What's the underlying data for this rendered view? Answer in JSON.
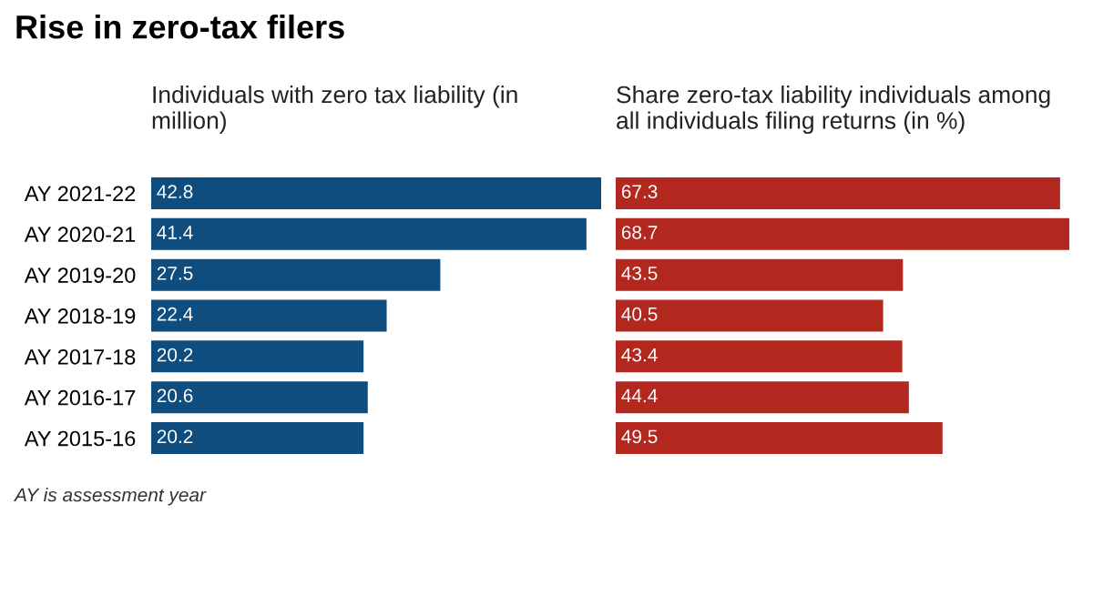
{
  "chart_data": [
    {
      "type": "bar",
      "orientation": "horizontal",
      "title": "Rise in zero-tax filers",
      "subtitle": "Individuals with zero tax liability (in million)",
      "categories": [
        "AY 2021-22",
        "AY 2020-21",
        "AY 2019-20",
        "AY 2018-19",
        "AY 2017-18",
        "AY 2016-17",
        "AY 2015-16"
      ],
      "values": [
        42.8,
        41.4,
        27.5,
        22.4,
        20.2,
        20.6,
        20.2
      ],
      "color": "#0e4d7e",
      "data_labels": true,
      "tick_labels": "y",
      "grid": false,
      "legend": false,
      "annotations": [
        "AY is assessment year"
      ]
    },
    {
      "type": "bar",
      "orientation": "horizontal",
      "subtitle": "Share zero-tax liability individuals among all individuals filing returns (in %)",
      "categories": [
        null,
        null,
        null,
        null,
        null,
        null,
        null
      ],
      "values": [
        67.3,
        68.7,
        43.5,
        40.5,
        43.4,
        44.4,
        49.5
      ],
      "color": "#b3281e",
      "data_labels": true,
      "tick_labels": false,
      "grid": false,
      "legend": false
    }
  ]
}
